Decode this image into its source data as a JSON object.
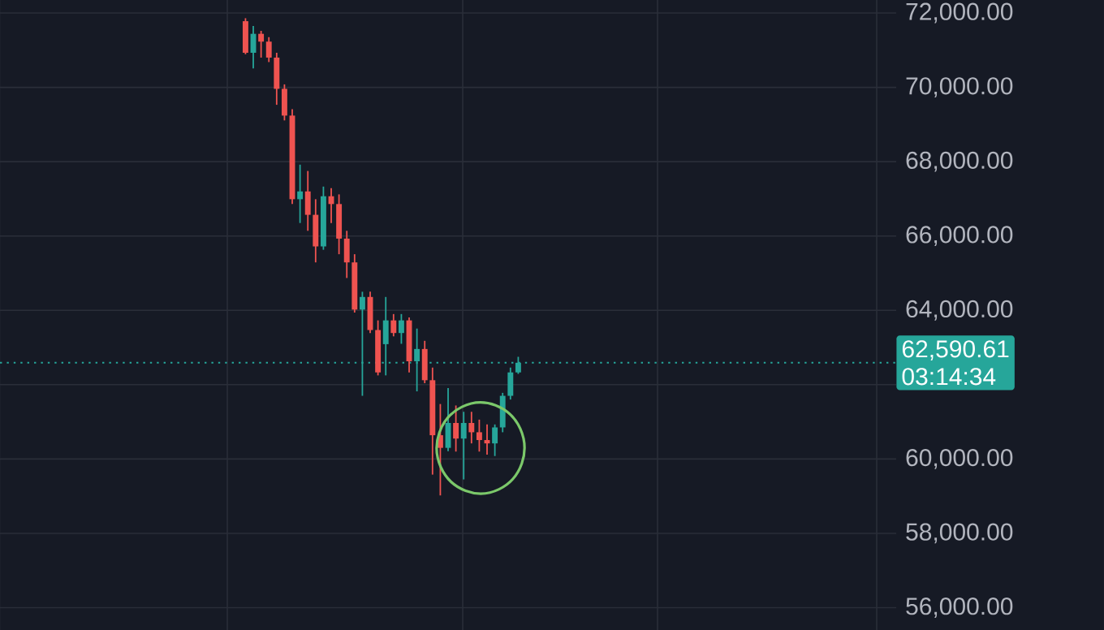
{
  "chart_data": {
    "type": "candlestick",
    "categories": [
      null,
      null,
      null,
      null,
      null,
      null,
      null,
      null,
      null,
      null,
      null,
      null,
      null,
      null,
      null,
      null,
      null,
      null,
      null,
      null,
      null,
      null,
      null,
      null,
      null,
      null,
      null,
      null,
      null,
      null,
      null,
      null,
      null,
      null,
      null,
      null,
      null,
      null,
      null,
      null,
      null,
      null,
      null,
      null,
      null,
      null,
      null,
      null,
      null,
      null,
      null,
      null,
      null,
      null,
      null,
      null,
      null,
      null,
      null,
      null,
      null,
      null,
      null,
      null,
      null,
      null,
      null,
      null,
      null,
      null,
      null,
      null,
      null,
      null,
      null,
      null,
      null,
      null,
      null,
      null,
      null,
      null,
      null,
      null,
      null,
      null,
      null,
      null,
      null,
      null,
      null,
      null,
      null,
      null,
      null,
      null,
      null,
      null,
      null,
      null,
      null,
      null,
      null,
      null,
      null,
      null,
      null,
      null,
      null,
      null,
      null,
      null,
      null,
      null,
      null
    ],
    "ohlc": [
      null,
      null,
      null,
      null,
      null,
      null,
      null,
      null,
      null,
      null,
      null,
      null,
      null,
      null,
      null,
      null,
      null,
      null,
      null,
      null,
      null,
      null,
      null,
      null,
      null,
      null,
      null,
      null,
      null,
      null,
      null,
      [
        71780,
        71860,
        70890,
        70930
      ],
      [
        70930,
        71650,
        70510,
        71440
      ],
      [
        71440,
        71520,
        70800,
        71230
      ],
      [
        71230,
        71350,
        70680,
        70800
      ],
      [
        70800,
        70930,
        69530,
        69960
      ],
      [
        69960,
        70080,
        69110,
        69240
      ],
      [
        69240,
        69410,
        66860,
        66990
      ],
      [
        66990,
        67920,
        66350,
        67200
      ],
      [
        67200,
        67750,
        66140,
        66570
      ],
      [
        66570,
        66990,
        65290,
        65720
      ],
      [
        65720,
        67330,
        65630,
        67070
      ],
      [
        67070,
        67290,
        66350,
        66860
      ],
      [
        66860,
        67120,
        65510,
        65930
      ],
      [
        65930,
        66140,
        64870,
        65290
      ],
      [
        65290,
        65510,
        63940,
        64020
      ],
      [
        64020,
        64500,
        61700,
        64360
      ],
      [
        64360,
        64500,
        63390,
        63470
      ],
      [
        63470,
        63730,
        62250,
        62330
      ],
      [
        63090,
        64360,
        62250,
        63730
      ],
      [
        63730,
        63900,
        63300,
        63390
      ],
      [
        63390,
        63900,
        63100,
        63730
      ],
      [
        63730,
        63810,
        62330,
        62630
      ],
      [
        62630,
        63510,
        61820,
        62960
      ],
      [
        62960,
        63180,
        62040,
        62120
      ],
      [
        62120,
        62460,
        59580,
        60640
      ],
      [
        60640,
        61480,
        59020,
        60300
      ],
      [
        60300,
        61910,
        60210,
        60970
      ],
      [
        60970,
        61440,
        60200,
        60550
      ],
      [
        60550,
        61270,
        59450,
        60970
      ],
      [
        60970,
        61270,
        60420,
        60720
      ],
      [
        60720,
        61060,
        60200,
        60510
      ],
      [
        60510,
        60930,
        60120,
        60420
      ],
      [
        60420,
        60930,
        60080,
        60850
      ],
      [
        60850,
        61780,
        60720,
        61700
      ],
      [
        61700,
        62460,
        61600,
        62330
      ],
      [
        62330,
        62750,
        62290,
        62590
      ],
      null,
      null,
      null,
      null,
      null,
      null,
      null,
      null,
      null,
      null,
      null,
      null,
      null,
      null,
      null,
      null,
      null,
      null,
      null,
      null,
      null,
      null,
      null,
      null,
      null,
      null,
      null,
      null,
      null,
      null,
      null,
      null,
      null,
      null,
      null,
      null,
      null,
      null,
      null,
      null,
      null,
      null,
      null,
      null,
      null,
      null,
      null,
      null
    ],
    "colors": [
      null,
      null,
      null,
      null,
      null,
      null,
      null,
      null,
      null,
      null,
      null,
      null,
      null,
      null,
      null,
      null,
      null,
      null,
      null,
      null,
      null,
      null,
      null,
      null,
      null,
      null,
      null,
      null,
      null,
      null,
      null,
      "#ef5350",
      "#26a69a",
      "#ef5350",
      "#ef5350",
      "#ef5350",
      "#ef5350",
      "#ef5350",
      "#26a69a",
      "#ef5350",
      "#ef5350",
      "#26a69a",
      "#ef5350",
      "#ef5350",
      "#ef5350",
      "#ef5350",
      "#26a69a",
      "#ef5350",
      "#ef5350",
      "#26a69a",
      "#ef5350",
      "#26a69a",
      "#ef5350",
      "#26a69a",
      "#ef5350",
      "#ef5350",
      "#ef5350",
      "#26a69a",
      "#ef5350",
      "#26a69a",
      "#ef5350",
      "#ef5350",
      "#ef5350",
      "#26a69a",
      "#26a69a",
      "#26a69a",
      "#26a69a",
      null,
      null,
      null,
      null,
      null,
      null,
      null,
      null,
      null,
      null,
      null,
      null,
      null,
      null,
      null,
      null,
      null,
      null,
      null,
      null,
      null,
      null,
      null,
      null,
      null,
      null,
      null,
      null,
      null,
      null,
      null,
      null,
      null,
      null,
      null,
      null,
      null,
      null,
      null,
      null,
      null,
      null,
      null,
      null,
      null,
      null,
      null,
      null
    ],
    "ylim": [
      55400,
      72350
    ],
    "yticks": [
      {
        "value": 56000,
        "label": "56,000.00"
      },
      {
        "value": 58000,
        "label": "58,000.00"
      },
      {
        "value": 60000,
        "label": "60,000.00"
      },
      {
        "value": 62000,
        "label": null
      },
      {
        "value": 64000,
        "label": "64,000.00"
      },
      {
        "value": 66000,
        "label": "66,000.00"
      },
      {
        "value": 68000,
        "label": "68,000.00"
      },
      {
        "value": 70000,
        "label": "70,000.00"
      },
      {
        "value": 72000,
        "label": "72,000.00"
      }
    ],
    "ref_lines": [
      {
        "axis": "y",
        "value": 62590.61,
        "label": "62,590.61",
        "color": "#26a69a",
        "line_style": "dotted"
      }
    ],
    "annotations": [
      "03:14:34"
    ],
    "grid": true,
    "tick_labels": "y"
  }
}
